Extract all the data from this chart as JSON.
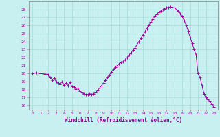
{
  "xlabel": "Windchill (Refroidissement éolien,°C)",
  "bg_color": "#c8f0f0",
  "line_color": "#990099",
  "grid_color": "#a8dada",
  "xlim": [
    -0.5,
    23.5
  ],
  "ylim": [
    15.5,
    29.0
  ],
  "yticks": [
    16,
    17,
    18,
    19,
    20,
    21,
    22,
    23,
    24,
    25,
    26,
    27,
    28
  ],
  "xticks": [
    0,
    1,
    2,
    3,
    4,
    5,
    6,
    7,
    8,
    9,
    10,
    11,
    12,
    13,
    14,
    15,
    16,
    17,
    18,
    19,
    20,
    21,
    22,
    23
  ],
  "x": [
    0,
    0.5,
    1,
    1.5,
    2,
    2.25,
    2.5,
    2.75,
    3,
    3.25,
    3.5,
    3.75,
    4,
    4.25,
    4.5,
    4.75,
    5,
    5.25,
    5.5,
    5.75,
    6,
    6.25,
    6.5,
    6.75,
    7,
    7.25,
    7.5,
    7.75,
    8,
    8.25,
    8.5,
    8.75,
    9,
    9.25,
    9.5,
    9.75,
    10,
    10.25,
    10.5,
    10.75,
    11,
    11.25,
    11.5,
    11.75,
    12,
    12.25,
    12.5,
    12.75,
    13,
    13.25,
    13.5,
    13.75,
    14,
    14.25,
    14.5,
    14.75,
    15,
    15.25,
    15.5,
    15.75,
    16,
    16.25,
    16.5,
    16.75,
    17,
    17.25,
    17.5,
    17.75,
    18,
    18.25,
    18.5,
    18.75,
    19,
    19.25,
    19.5,
    19.75,
    20,
    20.25,
    20.5,
    20.75,
    21,
    21.25,
    21.5,
    21.75,
    22,
    22.25,
    22.5,
    22.75,
    23
  ],
  "y": [
    20.0,
    20.1,
    20.0,
    19.95,
    19.9,
    19.5,
    19.2,
    19.4,
    19.0,
    18.8,
    18.7,
    19.0,
    18.6,
    18.8,
    18.5,
    18.9,
    18.4,
    18.3,
    18.1,
    18.2,
    17.8,
    17.6,
    17.5,
    17.4,
    17.4,
    17.5,
    17.4,
    17.5,
    17.6,
    17.9,
    18.2,
    18.5,
    18.8,
    19.2,
    19.5,
    19.8,
    20.2,
    20.5,
    20.8,
    21.0,
    21.2,
    21.4,
    21.5,
    21.7,
    22.0,
    22.3,
    22.6,
    22.9,
    23.2,
    23.6,
    24.0,
    24.4,
    24.8,
    25.2,
    25.6,
    26.0,
    26.4,
    26.8,
    27.1,
    27.4,
    27.6,
    27.8,
    27.95,
    28.1,
    28.2,
    28.25,
    28.3,
    28.25,
    28.2,
    28.0,
    27.8,
    27.5,
    27.1,
    26.6,
    26.0,
    25.3,
    24.5,
    23.8,
    23.0,
    22.3,
    20.0,
    19.5,
    18.5,
    17.5,
    17.0,
    16.8,
    16.5,
    16.2,
    15.8
  ]
}
